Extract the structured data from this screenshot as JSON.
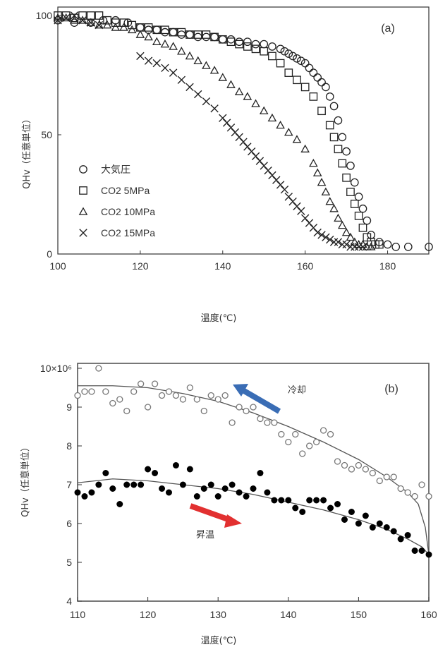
{
  "chart_data": [
    {
      "type": "scatter",
      "panel_label": "(a)",
      "xlabel": "温度(℃)",
      "ylabel": "QHv（任意単位）",
      "xlim": [
        100,
        190
      ],
      "ylim": [
        0,
        100
      ],
      "x_ticks": [
        "100",
        "120",
        "140",
        "160",
        "180"
      ],
      "y_ticks": [
        "0",
        "50",
        "100"
      ],
      "legend_position": "left",
      "series": [
        {
          "name": "大気圧",
          "marker": "circle",
          "x": [
            100,
            104,
            108,
            111,
            114,
            117,
            120,
            122,
            124,
            126,
            128,
            130,
            132,
            134,
            136,
            138,
            140,
            142,
            144,
            146,
            148,
            150,
            152,
            154,
            155,
            156,
            157,
            158,
            159,
            160,
            161,
            162,
            163,
            164,
            165,
            166,
            167,
            168,
            169,
            170,
            171,
            172,
            173,
            174,
            175,
            176,
            178,
            180,
            182,
            185,
            190
          ],
          "y": [
            98,
            97,
            97,
            98,
            98,
            97,
            95,
            94,
            94,
            93,
            93,
            92,
            92,
            91,
            91,
            91,
            90,
            90,
            89,
            89,
            88,
            88,
            87,
            86,
            85,
            84,
            83,
            82,
            81,
            80,
            78,
            76,
            74,
            72,
            70,
            66,
            62,
            56,
            49,
            43,
            37,
            30,
            24,
            19,
            14,
            8,
            5,
            4,
            3,
            3,
            3
          ]
        },
        {
          "name": "CO2 5MPa",
          "marker": "square",
          "x": [
            100,
            102,
            104,
            106,
            108,
            110,
            112,
            114,
            116,
            118,
            120,
            122,
            124,
            126,
            128,
            130,
            132,
            134,
            136,
            138,
            140,
            142,
            144,
            146,
            148,
            150,
            152,
            154,
            156,
            158,
            160,
            162,
            164,
            166,
            167,
            168,
            169,
            170,
            171,
            172,
            173,
            174,
            175,
            176,
            177,
            178
          ],
          "y": [
            100,
            100,
            99,
            100,
            100,
            100,
            98,
            97,
            97,
            96,
            95,
            95,
            94,
            94,
            93,
            93,
            92,
            92,
            92,
            91,
            90,
            89,
            88,
            87,
            86,
            85,
            83,
            80,
            76,
            73,
            70,
            66,
            60,
            54,
            49,
            44,
            38,
            32,
            26,
            21,
            16,
            11,
            7,
            5,
            4,
            4
          ]
        },
        {
          "name": "CO2 10MPa",
          "marker": "triangle",
          "x": [
            100,
            102,
            104,
            106,
            108,
            110,
            112,
            114,
            116,
            118,
            120,
            122,
            124,
            126,
            128,
            130,
            132,
            134,
            136,
            138,
            140,
            142,
            144,
            146,
            148,
            150,
            152,
            154,
            156,
            158,
            160,
            162,
            163,
            164,
            165,
            166,
            167,
            168,
            169,
            170,
            171,
            172,
            173,
            174,
            175,
            176
          ],
          "y": [
            99,
            99,
            98,
            98,
            97,
            96,
            96,
            95,
            95,
            94,
            92,
            91,
            89,
            88,
            87,
            85,
            83,
            81,
            79,
            77,
            74,
            71,
            68,
            66,
            63,
            60,
            57,
            54,
            51,
            48,
            44,
            38,
            34,
            30,
            26,
            22,
            19,
            15,
            12,
            9,
            7,
            5,
            4,
            4,
            3,
            3
          ]
        },
        {
          "name": "CO2 15MPa",
          "marker": "cross",
          "x": [
            100,
            102,
            104,
            106,
            108,
            110,
            120,
            122,
            124,
            126,
            128,
            130,
            132,
            134,
            136,
            138,
            140,
            141,
            142,
            143,
            144,
            145,
            146,
            147,
            148,
            149,
            150,
            151,
            152,
            153,
            154,
            155,
            156,
            157,
            158,
            159,
            160,
            161,
            162,
            163,
            164,
            165,
            166,
            167,
            168,
            169,
            170,
            171,
            172,
            173,
            174
          ],
          "y": [
            98,
            99,
            100,
            98,
            97,
            96,
            83,
            81,
            80,
            78,
            76,
            73,
            70,
            67,
            64,
            61,
            57,
            55,
            53,
            51,
            49,
            47,
            45,
            43,
            41,
            39,
            37,
            35,
            33,
            31,
            29,
            27,
            24,
            22,
            20,
            18,
            15,
            13,
            11,
            9,
            8,
            7,
            6,
            5,
            5,
            4,
            4,
            3,
            3,
            3,
            3
          ]
        }
      ]
    },
    {
      "type": "scatter",
      "panel_label": "(b)",
      "xlabel": "温度(℃)",
      "ylabel": "QHv（任意単位）",
      "ylabel_multiplier": "10×10⁶",
      "xlim": [
        110,
        160
      ],
      "ylim": [
        4,
        10
      ],
      "x_ticks": [
        "110",
        "120",
        "130",
        "140",
        "150",
        "160"
      ],
      "y_ticks": [
        "4",
        "5",
        "6",
        "7",
        "8",
        "9",
        "10×10⁶"
      ],
      "annotations": {
        "cooling": "冷却",
        "heating": "昇温"
      },
      "series": [
        {
          "name": "冷却",
          "marker": "open-circle",
          "color": "#3a6db5",
          "x": [
            110,
            111,
            112,
            113,
            114,
            115,
            116,
            117,
            118,
            119,
            120,
            121,
            122,
            123,
            124,
            125,
            126,
            127,
            128,
            129,
            130,
            131,
            132,
            133,
            134,
            135,
            136,
            137,
            138,
            139,
            140,
            141,
            142,
            143,
            144,
            145,
            146,
            147,
            148,
            149,
            150,
            151,
            152,
            153,
            154,
            155,
            156,
            157,
            158,
            159,
            160
          ],
          "y": [
            9.3,
            9.4,
            9.4,
            10.0,
            9.4,
            9.1,
            9.2,
            8.9,
            9.4,
            9.6,
            9.0,
            9.6,
            9.3,
            9.4,
            9.3,
            9.2,
            9.5,
            9.2,
            8.9,
            9.3,
            9.2,
            9.3,
            8.6,
            9.0,
            8.9,
            9.0,
            8.7,
            8.6,
            8.6,
            8.3,
            8.1,
            8.3,
            7.8,
            8.0,
            8.1,
            8.4,
            8.3,
            7.6,
            7.5,
            7.4,
            7.5,
            7.4,
            7.3,
            7.1,
            7.2,
            7.2,
            6.9,
            6.8,
            6.7,
            7.0,
            6.7
          ]
        },
        {
          "name": "昇温",
          "marker": "filled-circle",
          "color": "#e23030",
          "x": [
            110,
            111,
            112,
            113,
            114,
            115,
            116,
            117,
            118,
            119,
            120,
            121,
            122,
            123,
            124,
            125,
            126,
            127,
            128,
            129,
            130,
            131,
            132,
            133,
            134,
            135,
            136,
            137,
            138,
            139,
            140,
            141,
            142,
            143,
            144,
            145,
            146,
            147,
            148,
            149,
            150,
            151,
            152,
            153,
            154,
            155,
            156,
            157,
            158,
            159,
            160
          ],
          "y": [
            6.8,
            6.7,
            6.8,
            7.0,
            7.3,
            6.9,
            6.5,
            7.0,
            7.0,
            7.0,
            7.4,
            7.3,
            6.9,
            6.8,
            7.5,
            7.0,
            7.4,
            6.7,
            6.9,
            7.0,
            6.7,
            6.9,
            7.0,
            6.8,
            6.7,
            6.9,
            7.3,
            6.8,
            6.6,
            6.6,
            6.6,
            6.4,
            6.3,
            6.6,
            6.6,
            6.6,
            6.4,
            6.5,
            6.1,
            6.3,
            6.0,
            6.2,
            5.9,
            6.0,
            5.9,
            5.8,
            5.6,
            5.7,
            5.3,
            5.3,
            5.2
          ]
        }
      ]
    }
  ]
}
